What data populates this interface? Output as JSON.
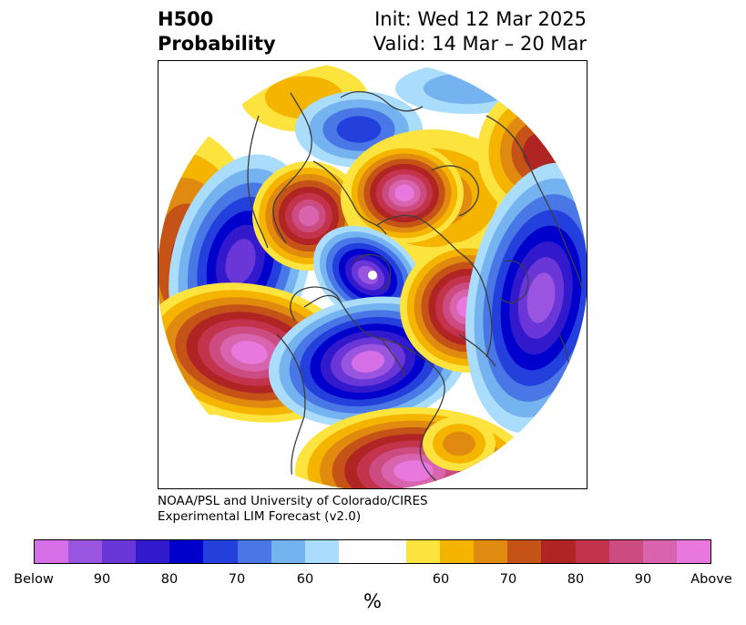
{
  "header": {
    "variable": "H500",
    "product": "Probability",
    "init": "Init: Wed 12 Mar 2025",
    "valid": "Valid: 14 Mar – 20 Mar"
  },
  "credit": {
    "line1": "NOAA/PSL and University of Colorado/CIRES",
    "line2": "Experimental LIM Forecast (v2.0)"
  },
  "colorbar": {
    "unit": "%",
    "colors": [
      "#d66ee8",
      "#9a55e0",
      "#6a36d8",
      "#3319cc",
      "#0000cc",
      "#2340dd",
      "#4a77e6",
      "#75b2f0",
      "#aadcfb",
      "#ffffff",
      "#fde33e",
      "#f5b400",
      "#e08a10",
      "#c55318",
      "#b02424",
      "#c4334c",
      "#cc4c82",
      "#d964ae",
      "#e878de"
    ],
    "tick_labels": [
      "Below",
      "90",
      "80",
      "70",
      "60",
      "60",
      "70",
      "80",
      "90",
      "Above"
    ]
  },
  "palette": {
    "below": [
      "#aadcfb",
      "#75b2f0",
      "#4a77e6",
      "#2340dd",
      "#0000cc",
      "#3319cc",
      "#6a36d8",
      "#9a55e0",
      "#d66ee8"
    ],
    "above": [
      "#fde33e",
      "#f5b400",
      "#e08a10",
      "#c55318",
      "#b02424",
      "#c4334c",
      "#cc4c82",
      "#d964ae",
      "#e878de"
    ],
    "coast": "#3d3d3d"
  }
}
